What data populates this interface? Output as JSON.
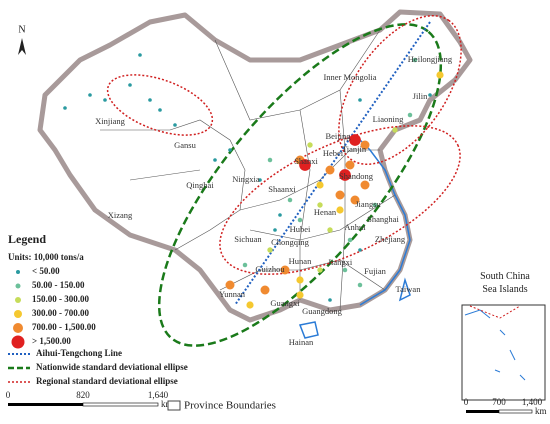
{
  "north_arrow": "N",
  "provinces": [
    "Heilongjiang",
    "Jilin",
    "Inner Mongolia",
    "Liaoning",
    "Xinjiang",
    "Gansu",
    "Qinghai",
    "Xizang",
    "Ningxia",
    "Shaanxi",
    "Shanxi",
    "Hebei",
    "Beijing",
    "Tianjin",
    "Shandong",
    "Henan",
    "Jiangsu",
    "Anhui",
    "Hubei",
    "Shanghai",
    "Zhejiang",
    "Sichuan",
    "Chongqing",
    "Hunan",
    "Jiangxi",
    "Guizhou",
    "Fujian",
    "Yunnan",
    "Guangxi",
    "Guangdong",
    "Taiwan",
    "Hainan"
  ],
  "legend": {
    "title": "Legend",
    "units": "Units: 10,000  tons/a",
    "classes": [
      "< 50.00",
      "50.00 - 150.00",
      "150.00 - 300.00",
      "300.00 - 700.00",
      "700.00 - 1,500.00",
      "> 1,500.00"
    ],
    "lines": [
      "Aihui-Tengchong Line",
      "Nationwide standard deviational ellipse",
      "Regional standard deviational ellipse"
    ],
    "boundaries": "Province Boundaries"
  },
  "scale": {
    "ticks": [
      "0",
      "820",
      "1,640"
    ],
    "unit": "km"
  },
  "inset": {
    "title": "South China Sea Islands",
    "ticks": [
      "0",
      "700",
      "1,400"
    ],
    "unit": "km"
  }
}
